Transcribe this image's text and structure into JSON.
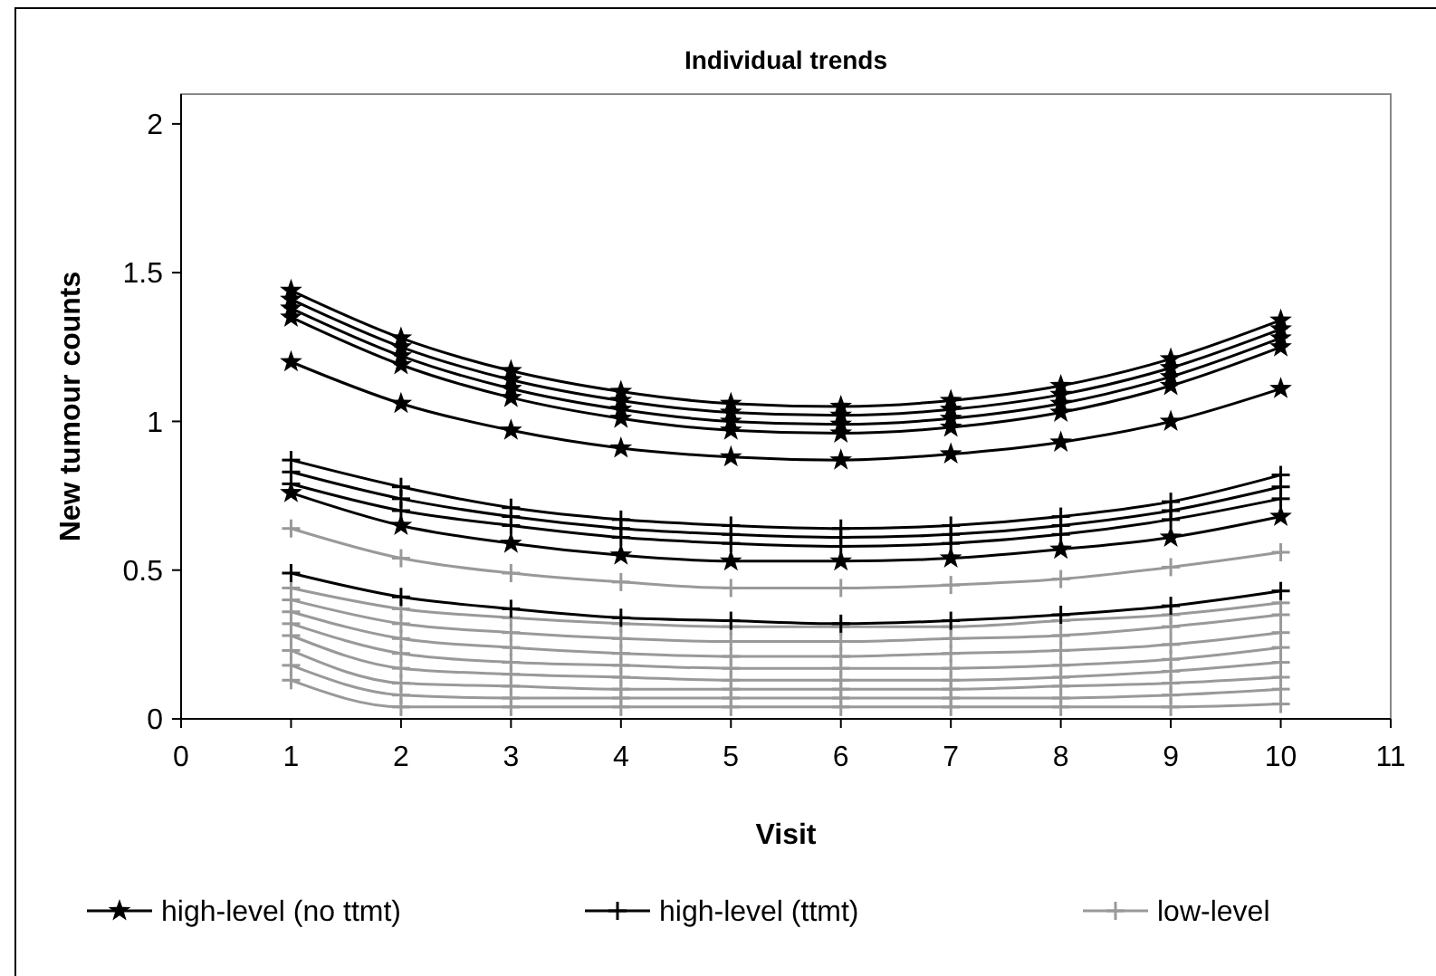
{
  "chart_data": {
    "type": "line",
    "title": "Individual trends",
    "xlabel": "Visit",
    "ylabel": "New tumour counts",
    "x": [
      1,
      2,
      3,
      4,
      5,
      6,
      7,
      8,
      9,
      10
    ],
    "xlim": [
      0,
      11
    ],
    "xticks": [
      0,
      1,
      2,
      3,
      4,
      5,
      6,
      7,
      8,
      9,
      10,
      11
    ],
    "ylim": [
      0,
      2.1
    ],
    "yticks": [
      0,
      0.5,
      1,
      1.5,
      2
    ],
    "grid": false,
    "legend": "bottom",
    "series": [
      {
        "name": "high-level (no ttmt)",
        "color": "#000000",
        "marker": "star",
        "values": [
          1.44,
          1.28,
          1.17,
          1.1,
          1.06,
          1.05,
          1.07,
          1.12,
          1.21,
          1.34
        ]
      },
      {
        "color": "#000000",
        "marker": "star",
        "values": [
          1.41,
          1.25,
          1.14,
          1.07,
          1.03,
          1.02,
          1.04,
          1.09,
          1.18,
          1.31
        ]
      },
      {
        "color": "#000000",
        "marker": "star",
        "values": [
          1.38,
          1.22,
          1.11,
          1.04,
          1.0,
          0.99,
          1.01,
          1.06,
          1.15,
          1.28
        ]
      },
      {
        "color": "#000000",
        "marker": "star",
        "values": [
          1.35,
          1.19,
          1.08,
          1.01,
          0.97,
          0.96,
          0.98,
          1.03,
          1.12,
          1.25
        ]
      },
      {
        "color": "#000000",
        "marker": "star",
        "values": [
          1.2,
          1.06,
          0.97,
          0.91,
          0.88,
          0.87,
          0.89,
          0.93,
          1.0,
          1.11
        ]
      },
      {
        "color": "#000000",
        "marker": "star",
        "values": [
          0.76,
          0.65,
          0.59,
          0.55,
          0.53,
          0.53,
          0.54,
          0.57,
          0.61,
          0.68
        ]
      },
      {
        "name": "high-level (ttmt)",
        "color": "#000000",
        "marker": "cross",
        "values": [
          0.87,
          0.78,
          0.71,
          0.67,
          0.65,
          0.64,
          0.65,
          0.68,
          0.73,
          0.82
        ]
      },
      {
        "color": "#000000",
        "marker": "cross",
        "values": [
          0.83,
          0.74,
          0.68,
          0.64,
          0.62,
          0.61,
          0.62,
          0.65,
          0.7,
          0.78
        ]
      },
      {
        "color": "#000000",
        "marker": "cross",
        "values": [
          0.79,
          0.7,
          0.65,
          0.61,
          0.59,
          0.58,
          0.59,
          0.62,
          0.67,
          0.74
        ]
      },
      {
        "color": "#000000",
        "marker": "cross",
        "values": [
          0.49,
          0.41,
          0.37,
          0.34,
          0.33,
          0.32,
          0.33,
          0.35,
          0.38,
          0.43
        ]
      },
      {
        "name": "low-level",
        "color": "#999999",
        "marker": "cross",
        "values": [
          0.64,
          0.54,
          0.49,
          0.46,
          0.44,
          0.44,
          0.45,
          0.47,
          0.51,
          0.56
        ]
      },
      {
        "color": "#999999",
        "marker": "cross",
        "values": [
          0.44,
          0.37,
          0.34,
          0.32,
          0.31,
          0.31,
          0.31,
          0.33,
          0.35,
          0.39
        ]
      },
      {
        "color": "#999999",
        "marker": "cross",
        "values": [
          0.4,
          0.32,
          0.29,
          0.27,
          0.26,
          0.26,
          0.27,
          0.28,
          0.31,
          0.35
        ]
      },
      {
        "color": "#999999",
        "marker": "cross",
        "values": [
          0.36,
          0.27,
          0.24,
          0.22,
          0.21,
          0.21,
          0.22,
          0.23,
          0.25,
          0.29
        ]
      },
      {
        "color": "#999999",
        "marker": "cross",
        "values": [
          0.32,
          0.22,
          0.19,
          0.18,
          0.17,
          0.17,
          0.17,
          0.18,
          0.2,
          0.24
        ]
      },
      {
        "color": "#999999",
        "marker": "cross",
        "values": [
          0.28,
          0.17,
          0.15,
          0.14,
          0.13,
          0.13,
          0.13,
          0.14,
          0.16,
          0.19
        ]
      },
      {
        "color": "#999999",
        "marker": "cross",
        "values": [
          0.23,
          0.12,
          0.11,
          0.1,
          0.1,
          0.1,
          0.1,
          0.11,
          0.12,
          0.14
        ]
      },
      {
        "color": "#999999",
        "marker": "cross",
        "values": [
          0.18,
          0.08,
          0.07,
          0.07,
          0.07,
          0.07,
          0.07,
          0.07,
          0.08,
          0.1
        ]
      },
      {
        "color": "#999999",
        "marker": "cross",
        "values": [
          0.13,
          0.04,
          0.04,
          0.04,
          0.04,
          0.04,
          0.04,
          0.04,
          0.04,
          0.05
        ]
      }
    ]
  }
}
